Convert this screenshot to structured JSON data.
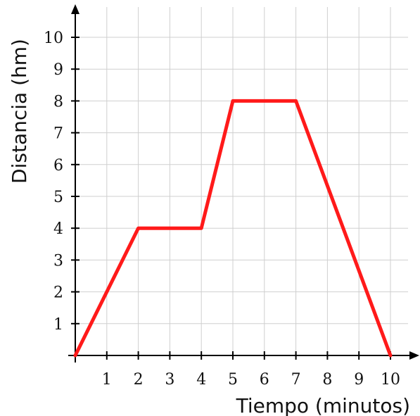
{
  "chart_data": {
    "type": "line",
    "xlabel": "Tiempo (minutos)",
    "ylabel": "Distancia (hm)",
    "xlim": [
      0,
      10
    ],
    "ylim": [
      0,
      10
    ],
    "x_ticks": [
      1,
      2,
      3,
      4,
      5,
      6,
      7,
      8,
      9,
      10
    ],
    "y_ticks": [
      1,
      2,
      3,
      4,
      5,
      6,
      7,
      8,
      9,
      10
    ],
    "grid": true,
    "series": [
      {
        "color": "#ff1a1a",
        "x": [
          0,
          2,
          4,
          5,
          7,
          10
        ],
        "y": [
          0,
          4,
          4,
          8,
          8,
          0
        ]
      }
    ],
    "colors": {
      "grid": "#cfcfcf",
      "axis": "#000000",
      "line": "#ff1a1a"
    }
  }
}
